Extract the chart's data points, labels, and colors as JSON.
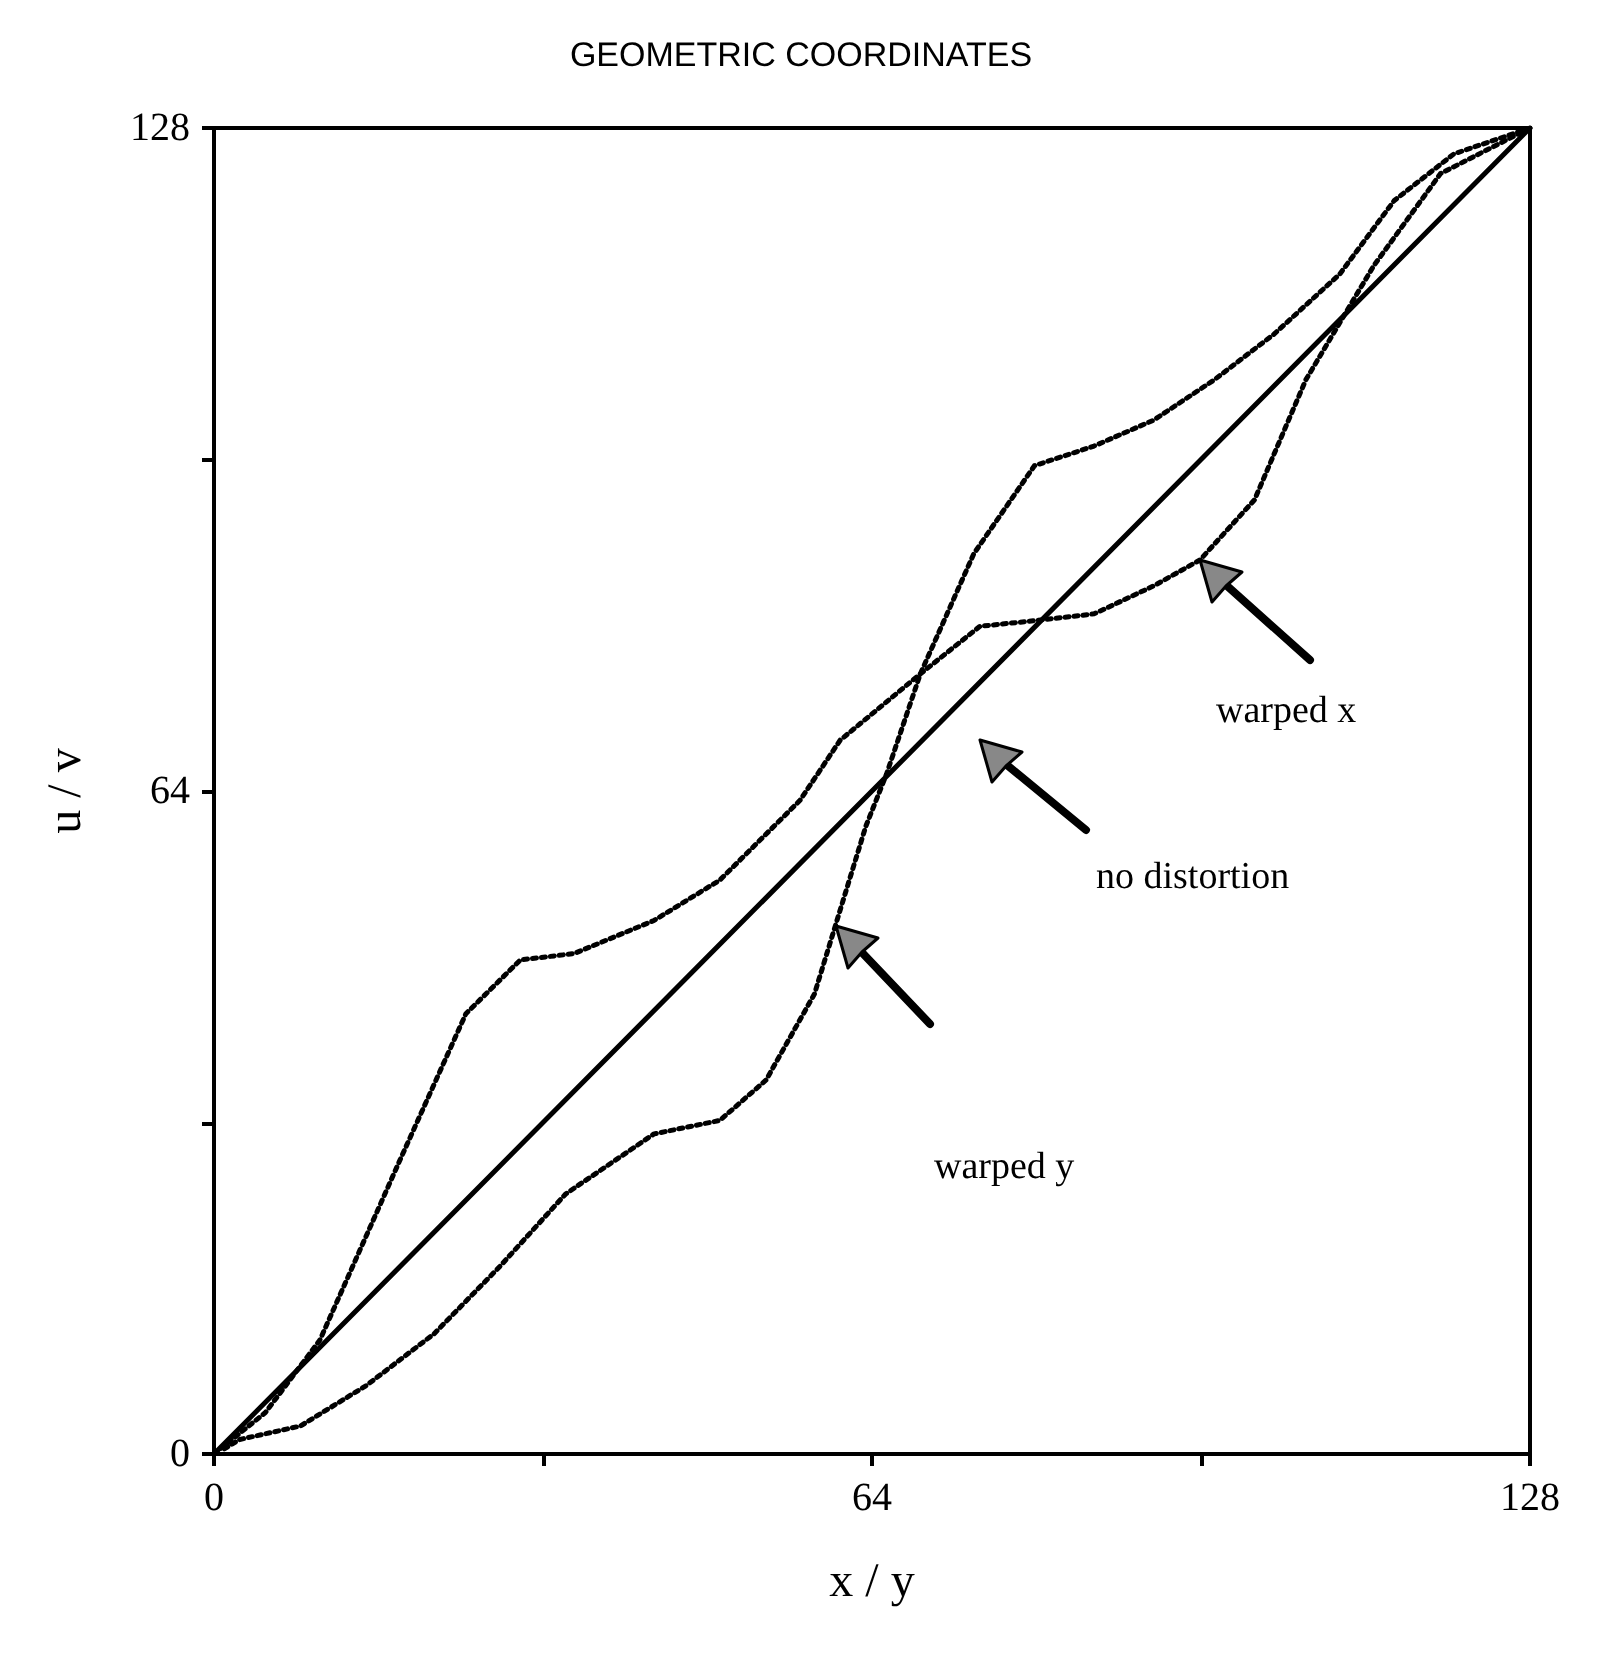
{
  "chart_data": {
    "type": "line",
    "title": "GEOMETRIC COORDINATES",
    "xlabel": "x / y",
    "ylabel": "u / v",
    "xlim": [
      0,
      128
    ],
    "ylim": [
      0,
      128
    ],
    "xticks": [
      0,
      {
        "value": 32,
        "label": null
      },
      64,
      {
        "value": 96,
        "label": null
      },
      128
    ],
    "yticks": [
      0,
      {
        "value": 32,
        "label": null
      },
      64,
      {
        "value": 96,
        "label": null
      },
      128
    ],
    "grid": false,
    "marker": "none",
    "series": [
      {
        "color": "#000000",
        "line_style": "solid",
        "x": [
          0,
          128
        ],
        "values": [
          0,
          128
        ]
      },
      {
        "color": "#000000",
        "line_style": "dotted",
        "x": [
          0,
          5,
          10.3,
          18.1,
          24.5,
          29.8,
          35,
          42.8,
          49.2,
          57,
          60.9,
          68.7,
          74.5,
          80.4,
          85.6,
          91.4,
          95.9,
          101.2,
          106.2,
          112.8,
          119.3,
          128
        ],
        "values": [
          0,
          4,
          11,
          28.4,
          42.5,
          47.7,
          48.3,
          51.5,
          55.4,
          63.1,
          68.9,
          75.3,
          79.9,
          80.5,
          81.1,
          83.8,
          86.3,
          92.1,
          103.7,
          114.7,
          123.6,
          128
        ]
      },
      {
        "color": "#000000",
        "line_style": "dotted",
        "x": [
          1,
          2.5,
          8.4,
          14.8,
          21.4,
          27.8,
          34.2,
          42.8,
          49.2,
          53.7,
          58.4,
          63.4,
          65.4,
          68.7,
          73.9,
          79.8,
          85.6,
          91.4,
          97.3,
          103.1,
          109.5,
          114.8,
          120.6,
          128
        ],
        "values": [
          0.5,
          1.4,
          2.7,
          6.6,
          11.6,
          18.1,
          25.1,
          30.9,
          32.2,
          36.1,
          44.4,
          60.6,
          65.6,
          75.3,
          86.9,
          95.4,
          97.3,
          99.8,
          103.7,
          108.1,
          113.9,
          121,
          125.5,
          128
        ]
      }
    ],
    "annotations": [
      "warped x",
      "no distortion",
      "warped y"
    ]
  }
}
